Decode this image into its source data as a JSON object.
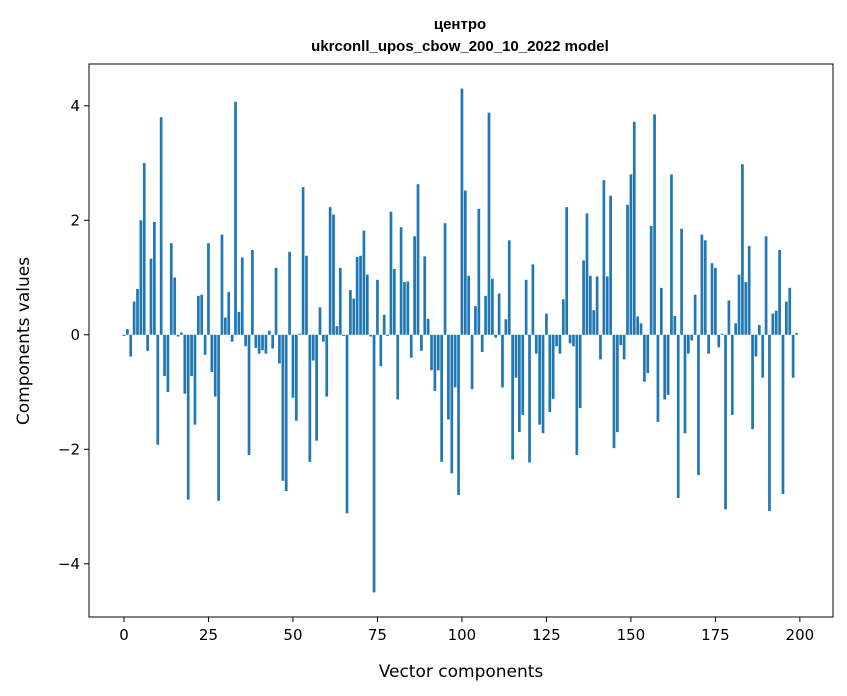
{
  "chart_data": {
    "type": "bar",
    "title": [
      "центро",
      "ukrconll_upos_cbow_200_10_2022 model"
    ],
    "xlabel": "Vector components",
    "ylabel": "Components values",
    "xlim": [
      -10.35,
      209.8
    ],
    "ylim": [
      -4.93,
      4.73
    ],
    "xticks": [
      0,
      25,
      50,
      75,
      100,
      125,
      150,
      175,
      200
    ],
    "yticks": [
      -4,
      -2,
      0,
      2,
      4
    ],
    "ytick_labels": [
      "−4",
      "−2",
      "0",
      "2",
      "4"
    ],
    "grid": false,
    "bar_color": "#1f77b4",
    "values": [
      -0.02,
      0.1,
      -0.38,
      0.58,
      0.8,
      2.0,
      3.0,
      -0.28,
      1.33,
      1.97,
      -1.92,
      3.8,
      -0.72,
      -1.0,
      1.6,
      1.0,
      -0.03,
      0.04,
      -1.03,
      -2.88,
      -0.72,
      -1.57,
      0.68,
      0.7,
      -0.35,
      1.6,
      -0.65,
      -1.08,
      -2.9,
      1.75,
      0.3,
      0.75,
      -0.12,
      4.07,
      0.4,
      1.35,
      -0.2,
      -2.1,
      1.48,
      -0.23,
      -0.33,
      -0.27,
      -0.33,
      0.07,
      -0.24,
      1.17,
      -0.5,
      -2.55,
      -2.73,
      1.45,
      -1.1,
      -1.5,
      0.02,
      2.58,
      1.38,
      -2.22,
      -0.45,
      -1.85,
      0.48,
      -0.12,
      -1.08,
      2.23,
      2.1,
      0.15,
      1.17,
      -0.02,
      -3.12,
      0.78,
      0.63,
      1.36,
      1.38,
      1.82,
      1.05,
      -0.03,
      -4.5,
      0.96,
      -0.55,
      0.35,
      -0.02,
      2.15,
      1.15,
      -1.13,
      1.88,
      0.92,
      0.93,
      -0.4,
      1.72,
      2.63,
      -0.28,
      1.37,
      0.28,
      -0.62,
      -0.98,
      -0.62,
      -2.22,
      1.95,
      -1.48,
      -2.42,
      -0.92,
      -2.8,
      4.3,
      2.52,
      1.03,
      -0.95,
      0.5,
      2.2,
      -0.3,
      0.68,
      3.88,
      0.98,
      -0.05,
      0.72,
      -0.92,
      0.27,
      1.65,
      -2.18,
      -0.75,
      -1.7,
      -1.4,
      0.96,
      -2.23,
      1.23,
      -0.33,
      -1.57,
      -1.72,
      0.37,
      -1.35,
      -1.12,
      -0.2,
      -0.33,
      0.62,
      2.23,
      -0.15,
      -0.2,
      -2.1,
      -1.28,
      1.3,
      2.12,
      1.03,
      0.43,
      1.02,
      -0.43,
      2.7,
      1.02,
      2.43,
      -1.98,
      -1.7,
      -0.18,
      -0.43,
      2.27,
      2.8,
      3.72,
      0.32,
      0.2,
      -0.82,
      -0.67,
      1.9,
      3.85,
      -1.52,
      0.82,
      -1.13,
      -1.05,
      2.8,
      0.33,
      -2.85,
      1.85,
      -1.72,
      -0.33,
      -0.1,
      0.7,
      -2.45,
      1.75,
      1.65,
      -0.33,
      1.25,
      1.17,
      -0.22,
      0.02,
      -3.05,
      0.6,
      -1.4,
      0.2,
      1.05,
      2.98,
      0.92,
      1.55,
      -1.65,
      -0.38,
      0.17,
      -0.75,
      1.72,
      -3.08,
      0.37,
      0.42,
      1.48,
      -2.78,
      0.58,
      0.82,
      -0.75,
      0.03
    ]
  }
}
